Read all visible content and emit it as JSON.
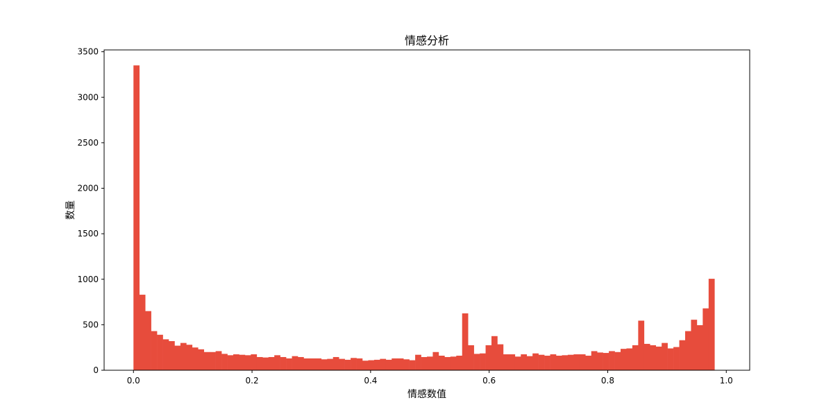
{
  "chart_data": {
    "type": "bar",
    "title": "情感分析",
    "xlabel": "情感数值",
    "ylabel": "数量",
    "bins": 100,
    "x_range": [
      0.0,
      0.99
    ],
    "xlim": [
      -0.0495,
      1.0395
    ],
    "ylim": [
      0,
      3520
    ],
    "x_ticks": [
      0.0,
      0.2,
      0.4,
      0.6,
      0.8,
      1.0
    ],
    "x_tick_labels": [
      "0.0",
      "0.2",
      "0.4",
      "0.6",
      "0.8",
      "1.0"
    ],
    "y_ticks": [
      0,
      500,
      1000,
      1500,
      2000,
      2500,
      3000,
      3500
    ],
    "y_tick_labels": [
      "0",
      "500",
      "1000",
      "1500",
      "2000",
      "2500",
      "3000",
      "3500"
    ],
    "grid": false,
    "bar_color": "#e74c3c",
    "values": [
      3350,
      830,
      650,
      430,
      390,
      340,
      320,
      270,
      300,
      280,
      250,
      230,
      200,
      200,
      210,
      180,
      165,
      175,
      170,
      165,
      175,
      145,
      140,
      145,
      165,
      145,
      130,
      155,
      145,
      130,
      130,
      130,
      120,
      125,
      145,
      125,
      115,
      135,
      130,
      105,
      110,
      115,
      125,
      115,
      130,
      130,
      120,
      110,
      170,
      145,
      150,
      200,
      160,
      145,
      150,
      160,
      625,
      275,
      180,
      185,
      275,
      375,
      285,
      175,
      175,
      150,
      175,
      155,
      185,
      170,
      160,
      175,
      160,
      165,
      170,
      175,
      175,
      160,
      210,
      195,
      190,
      210,
      200,
      235,
      240,
      275,
      545,
      290,
      275,
      260,
      300,
      240,
      255,
      330,
      430,
      555,
      495,
      680,
      1005,
      0
    ]
  }
}
